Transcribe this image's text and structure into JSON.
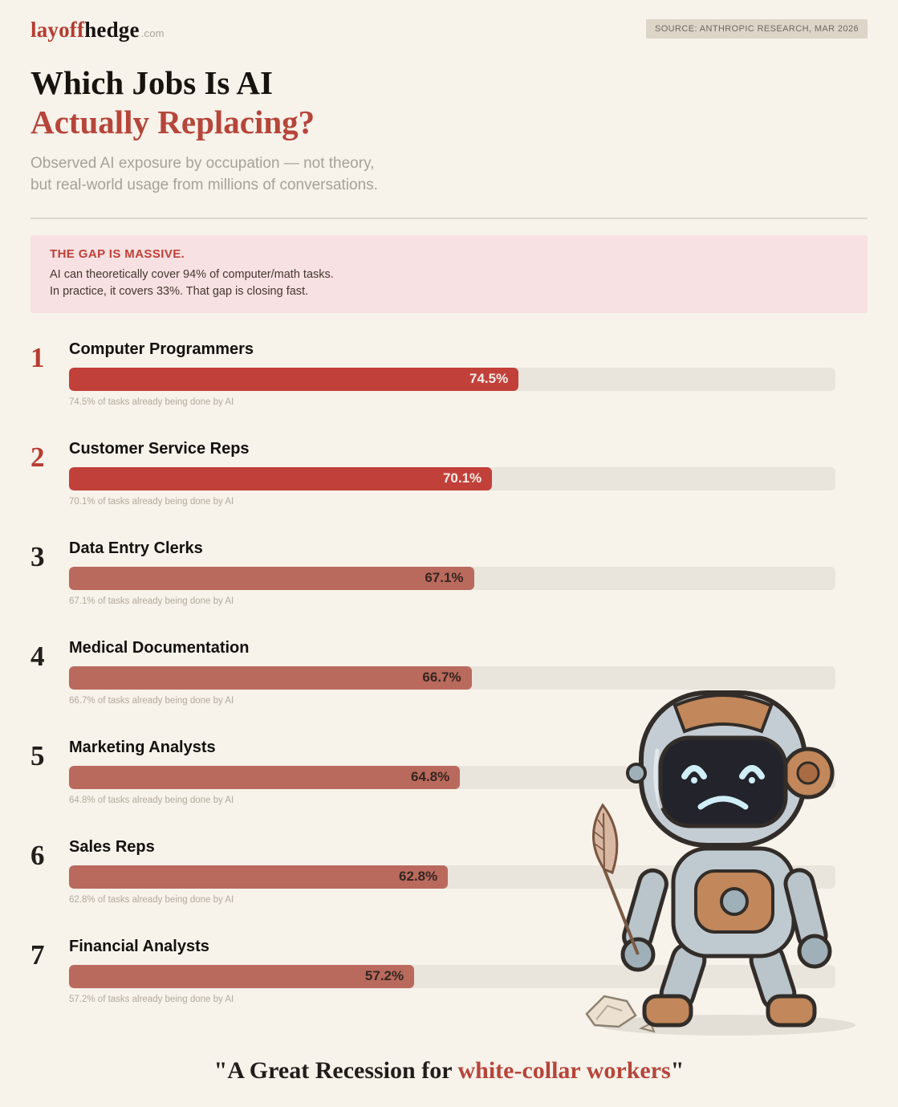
{
  "header": {
    "logo_part1": "layoff",
    "logo_part2": "hedge",
    "logo_suffix": ".com",
    "source_badge": "SOURCE: ANTHROPIC RESEARCH, MAR 2026"
  },
  "title": {
    "line1": "Which Jobs Is AI",
    "line2": "Actually Replacing?"
  },
  "subtitle": {
    "line1": "Observed AI exposure by occupation — not theory,",
    "line2": "but real-world usage from millions of conversations."
  },
  "callout": {
    "heading": "THE GAP IS MASSIVE.",
    "line1": "AI can theoretically cover 94% of computer/math tasks.",
    "line2": "In practice, it covers 33%. That gap is closing fast."
  },
  "chart_data": {
    "type": "bar",
    "orientation": "horizontal",
    "title": "Which Jobs Is AI Actually Replacing?",
    "xlabel": "",
    "ylabel": "",
    "xlim": [
      0,
      127
    ],
    "grid": false,
    "legend": false,
    "ranks": [
      "1",
      "2",
      "3",
      "4",
      "5",
      "6",
      "7"
    ],
    "categories": [
      "Computer Programmers",
      "Customer Service Reps",
      "Data Entry Clerks",
      "Medical Documentation",
      "Marketing Analysts",
      "Sales Reps",
      "Financial Analysts"
    ],
    "values": [
      74.5,
      70.1,
      67.1,
      66.7,
      64.8,
      62.8,
      57.2
    ],
    "value_labels": [
      "74.5%",
      "70.1%",
      "67.1%",
      "66.7%",
      "64.8%",
      "62.8%",
      "57.2%"
    ],
    "captions": [
      "74.5% of tasks already being done by AI",
      "70.1% of tasks already being done by AI",
      "67.1% of tasks already being done by AI",
      "66.7% of tasks already being done by AI",
      "64.8% of tasks already being done by AI",
      "62.8% of tasks already being done by AI",
      "57.2% of tasks already being done by AI"
    ],
    "bar_colors": [
      "#c2403a",
      "#c2403a",
      "#b96a5d",
      "#b96a5d",
      "#b96a5d",
      "#b96a5d",
      "#b96a5d"
    ],
    "value_label_colors": [
      "#f7ece7",
      "#f7ece7",
      "#35251f",
      "#35251f",
      "#35251f",
      "#35251f",
      "#35251f"
    ],
    "rank_colors": [
      "#b63c32",
      "#b63c32",
      "#221e1b",
      "#221e1b",
      "#221e1b",
      "#221e1b",
      "#221e1b"
    ],
    "track_color": "#e9e4dc"
  },
  "illustration": {
    "name": "sad robot holding a feather quill with crumpled paper"
  },
  "footer": {
    "quote_prefix": "\"A Great Recession for ",
    "quote_highlight": "white-collar workers",
    "quote_suffix": "\""
  }
}
